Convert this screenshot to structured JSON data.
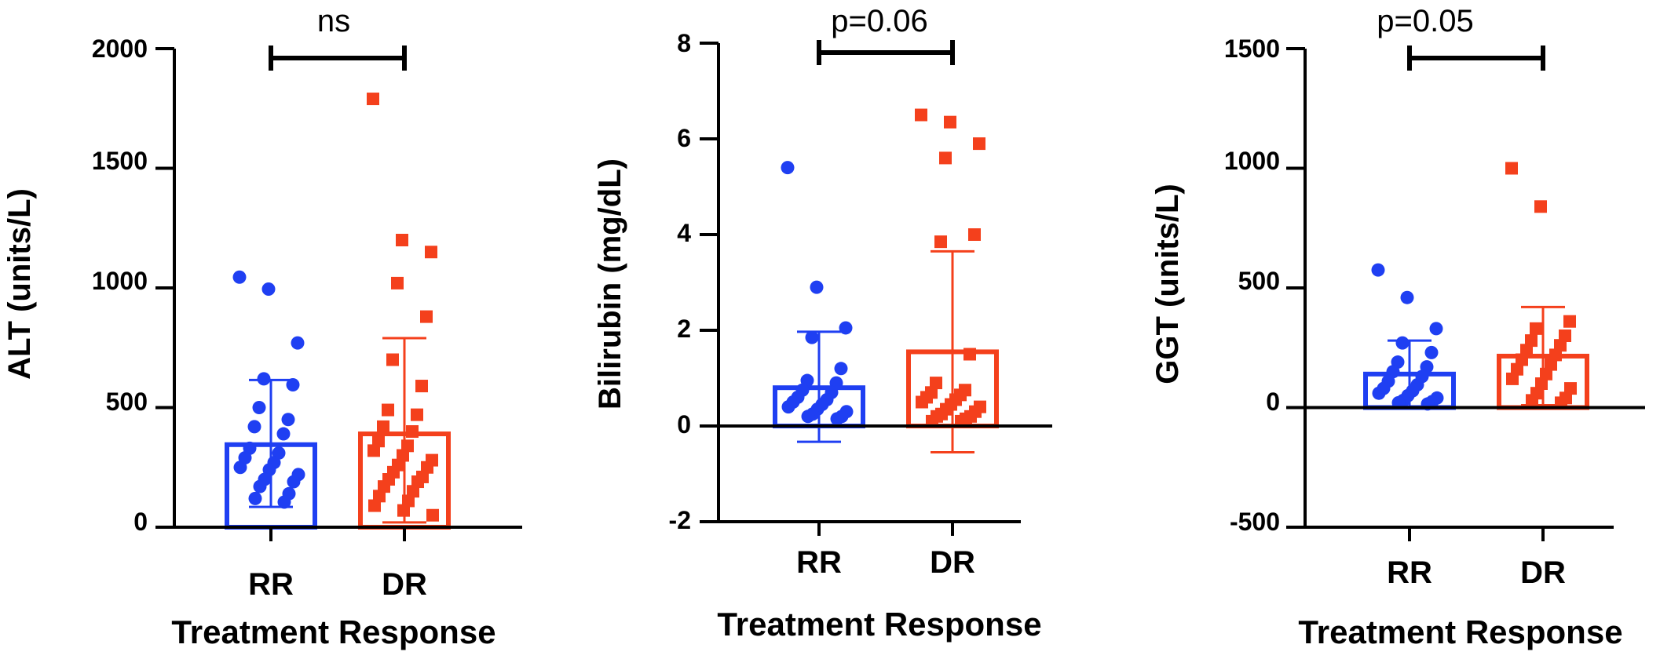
{
  "colors": {
    "RR": "#1f3ff2",
    "DR": "#f4401c",
    "axis": "#000000"
  },
  "chart_data": [
    {
      "type": "bar",
      "subtype": "bar-with-points",
      "ylabel": "ALT (units/L)",
      "xlabel": "Treatment Response",
      "categories": [
        "RR",
        "DR"
      ],
      "ylim": [
        0,
        2000
      ],
      "yticks": [
        0,
        500,
        1000,
        1500,
        2000
      ],
      "ytick_labels": [
        "0",
        "500",
        "1000",
        "1500",
        "2000"
      ],
      "significance": "ns",
      "series": [
        {
          "category": "RR",
          "mean": 345,
          "sd_upper": 615,
          "sd_lower": 85,
          "marker": "circle",
          "points": [
            1045,
            995,
            770,
            620,
            595,
            500,
            450,
            420,
            390,
            330,
            310,
            290,
            270,
            250,
            240,
            220,
            200,
            190,
            170,
            140,
            120,
            105
          ]
        },
        {
          "category": "DR",
          "mean": 390,
          "sd_upper": 790,
          "sd_lower": 20,
          "marker": "square",
          "points": [
            1790,
            1200,
            1150,
            1020,
            880,
            700,
            590,
            490,
            470,
            420,
            400,
            360,
            340,
            320,
            300,
            280,
            260,
            250,
            230,
            210,
            200,
            190,
            170,
            150,
            130,
            110,
            90,
            70,
            50
          ]
        }
      ]
    },
    {
      "type": "bar",
      "subtype": "bar-with-points",
      "ylabel": "Bilirubin (mg/dL)",
      "xlabel": "Treatment Response",
      "categories": [
        "RR",
        "DR"
      ],
      "ylim": [
        -2,
        8
      ],
      "yticks": [
        -2,
        0,
        2,
        4,
        6,
        8
      ],
      "ytick_labels": [
        "-2",
        "0",
        "2",
        "4",
        "6",
        "8"
      ],
      "significance": "p=0.06",
      "series": [
        {
          "category": "RR",
          "mean": 0.8,
          "sd_upper": 1.97,
          "sd_lower": -0.33,
          "marker": "circle",
          "points": [
            5.4,
            2.9,
            2.05,
            1.85,
            1.2,
            0.95,
            0.9,
            0.75,
            0.7,
            0.6,
            0.55,
            0.5,
            0.45,
            0.4,
            0.35,
            0.3,
            0.25,
            0.2,
            0.2,
            0.15
          ]
        },
        {
          "category": "DR",
          "mean": 1.55,
          "sd_upper": 3.65,
          "sd_lower": -0.55,
          "marker": "square",
          "points": [
            6.5,
            6.35,
            5.9,
            5.6,
            4.0,
            3.85,
            1.5,
            0.9,
            0.75,
            0.7,
            0.65,
            0.6,
            0.55,
            0.5,
            0.45,
            0.4,
            0.35,
            0.3,
            0.25,
            0.2,
            0.2,
            0.15,
            0.1,
            0.1
          ]
        }
      ]
    },
    {
      "type": "bar",
      "subtype": "bar-with-points",
      "ylabel": "GGT (units/L)",
      "xlabel": "Treatment Response",
      "categories": [
        "RR",
        "DR"
      ],
      "ylim": [
        -500,
        1500
      ],
      "yticks": [
        -500,
        0,
        500,
        1000,
        1500
      ],
      "ytick_labels": [
        "-500",
        "0",
        "500",
        "1000",
        "1500"
      ],
      "significance": "p=0.05",
      "series": [
        {
          "category": "RR",
          "mean": 140,
          "sd_upper": 280,
          "sd_lower": 0,
          "marker": "circle",
          "points": [
            575,
            460,
            330,
            270,
            230,
            190,
            170,
            150,
            130,
            110,
            95,
            80,
            70,
            60,
            50,
            40,
            30,
            25,
            20,
            15
          ]
        },
        {
          "category": "DR",
          "mean": 215,
          "sd_upper": 420,
          "sd_lower": 10,
          "marker": "square",
          "points": [
            1000,
            840,
            360,
            330,
            300,
            280,
            260,
            240,
            220,
            200,
            180,
            160,
            140,
            120,
            100,
            80,
            60,
            40,
            30,
            20
          ]
        }
      ]
    }
  ]
}
